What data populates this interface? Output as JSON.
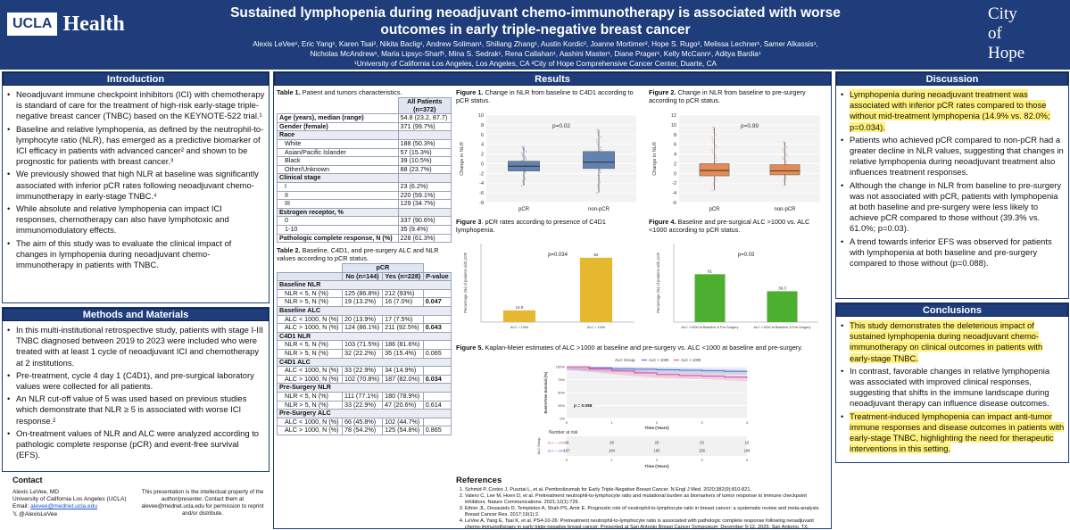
{
  "header": {
    "logo_left_box": "UCLA",
    "logo_left_word": "Health",
    "logo_right": [
      "City",
      "of",
      "Hope"
    ],
    "title_line1": "Sustained lymphopenia during neoadjuvant chemo-immunotherapy is associated with worse",
    "title_line2": "outcomes in early triple-negative breast cancer",
    "authors_line1": "Alexis LeVee¹, Eric Yang¹, Karen Tsai², Nikita Baclig¹, Andrew Soliman¹, Shiliang Zhang¹, Austin Kordic², Joanne Mortimer², Hope S. Rugo², Melissa Lechner¹, Samer Alkassis¹,",
    "authors_line2": "Nicholas McAndrew¹, Marla Lipsyc-Sharf¹, Mina S. Sedrak¹, Rena Callahan¹, Aashini Master¹, Diane Prager¹, Kelly McCann¹, Aditya Bardia¹",
    "affiliations": "¹University of California Los Angeles, Los Angeles, CA ²City of Hope Comprehensive Cancer Center, Duarte, CA"
  },
  "introduction": {
    "heading": "Introduction",
    "bullets": [
      "Neoadjuvant immune checkpoint inhibitors (ICI) with chemotherapy is standard of care for the treatment of high-risk early-stage triple-negative breast cancer (TNBC) based on the KEYNOTE-522 trial.¹",
      "Baseline and relative lymphopenia, as defined by the neutrophil-to-lymphocyte ratio (NLR), has emerged as a predictive biomarker of ICI efficacy in patients with advanced cancer² and shown to be prognostic for patients with breast cancer.³",
      "We previously showed that high NLR at baseline was significantly associated with inferior pCR rates following neoadjuvant chemo-immunotherapy in early-stage TNBC.⁴",
      "While absolute and relative lymphopenia can impact ICI responses, chemotherapy can also have lymphotoxic and immunomodulatory effects.",
      "The aim of this study was to evaluate the clinical impact of changes in lymphopenia during neoadjuvant chemo-immunotherapy in patients with TNBC."
    ]
  },
  "methods": {
    "heading": "Methods and Materials",
    "bullets": [
      "In this multi-institutional retrospective study, patients with stage I-III TNBC diagnosed between 2019 to 2023 were included who were treated with at least 1 cycle of neoadjuvant ICI and chemotherapy at 2 institutions.",
      "Pre-treatment, cycle 4 day 1 (C4D1), and pre-surgical laboratory values were collected for all patients.",
      "An NLR cut-off value of 5 was used based on previous studies which demonstrate that NLR ≥ 5 is associated with worse ICI response.²",
      "On-treatment values of NLR and ALC were analyzed according to pathologic complete response (pCR) and event-free survival (EFS)."
    ]
  },
  "contact": {
    "heading": "Contact",
    "name": "Alexis LeVee, MD",
    "org": "University of California Los Angeles (UCLA)",
    "email_label": "Email:",
    "email": "alevee@mednet.ucla.edu",
    "social": "𝕏  @AlexisLeVee",
    "notice": "This presentation is the intellectual property of the author/presenter. Contact them at alevee@mednet.ucla.edu for permission to reprint and/or distribute."
  },
  "results": {
    "heading": "Results",
    "table1": {
      "caption_bold": "Table 1.",
      "caption": " Patient and tumors characteristics.",
      "col_header": "All Patients",
      "col_sub": "(n=372)",
      "rows": [
        {
          "label": "Age (years), median (range)",
          "value": "54.8 (23.2, 87.7)",
          "bold": true
        },
        {
          "label": "Gender (female)",
          "value": "371 (99.7%)",
          "bold": true
        },
        {
          "label": "Race",
          "value": "",
          "group": true
        },
        {
          "label": "White",
          "value": "188 (50.3%)",
          "indent": true
        },
        {
          "label": "Asian/Pacific Islander",
          "value": "57 (15.3%)",
          "indent": true
        },
        {
          "label": "Black",
          "value": "39 (10.5%)",
          "indent": true
        },
        {
          "label": "Other/Unknown",
          "value": "88 (23.7%)",
          "indent": true
        },
        {
          "label": "Clinical stage",
          "value": "",
          "group": true
        },
        {
          "label": "I",
          "value": "23 (6.2%)",
          "indent": true
        },
        {
          "label": "II",
          "value": "220 (59.1%)",
          "indent": true
        },
        {
          "label": "III",
          "value": "129 (34.7%)",
          "indent": true
        },
        {
          "label": "Estrogen receptor, %",
          "value": "",
          "group": true
        },
        {
          "label": "0",
          "value": "337 (90.6%)",
          "indent": true
        },
        {
          "label": "1-10",
          "value": "35 (9.4%)",
          "indent": true
        },
        {
          "label": "Pathologic complete response, N (%)",
          "value": "228 (61.3%)",
          "bold": true
        }
      ]
    },
    "table2": {
      "caption_bold": "Table 2.",
      "caption": " Baseline, C4D1, and pre-surgery ALC and NLR values according to pCR status.",
      "group_header": "pCR",
      "headers": [
        "",
        "No (n=144)",
        "Yes (n=228)",
        "P-value"
      ],
      "rows": [
        {
          "label": "Baseline NLR",
          "group": true
        },
        {
          "label": "NLR < 5, N (%)",
          "no": "125 (86.8%)",
          "yes": "212 (93%)",
          "p": ""
        },
        {
          "label": "NLR > 5, N (%)",
          "no": "19 (13.2%)",
          "yes": "16 (7.0%)",
          "p": "0.047",
          "pbold": true
        },
        {
          "label": "Baseline ALC",
          "group": true
        },
        {
          "label": "ALC < 1000, N (%)",
          "no": "20 (13.9%)",
          "yes": "17 (7.5%)",
          "p": ""
        },
        {
          "label": "ALC > 1000, N (%)",
          "no": "124 (86.1%)",
          "yes": "211 (92.5%)",
          "p": "0.043",
          "pbold": true
        },
        {
          "label": "C4D1 NLR",
          "group": true
        },
        {
          "label": "NLR < 5, N (%)",
          "no": "103 (71.5%)",
          "yes": "186 (81.6%)",
          "p": ""
        },
        {
          "label": "NLR > 5, N (%)",
          "no": "32 (22.2%)",
          "yes": "35 (15.4%)",
          "p": "0.065"
        },
        {
          "label": "C4D1 ALC",
          "group": true
        },
        {
          "label": "ALC < 1000, N (%)",
          "no": "33 (22.9%)",
          "yes": "34 (14.9%)",
          "p": ""
        },
        {
          "label": "ALC > 1000, N (%)",
          "no": "102 (70.8%)",
          "yes": "187 (82.0%)",
          "p": "0.034",
          "pbold": true
        },
        {
          "label": "Pre-Surgery NLR",
          "group": true
        },
        {
          "label": "NLR < 5, N (%)",
          "no": "111 (77.1%)",
          "yes": "180 (78.9%)",
          "p": ""
        },
        {
          "label": "NLR > 5, N (%)",
          "no": "33 (22.9%)",
          "yes": "47 (20.6%)",
          "p": "0.614"
        },
        {
          "label": "Pre-Surgery ALC",
          "group": true
        },
        {
          "label": "ALC < 1000, N (%)",
          "no": "66 (45.8%)",
          "yes": "102 (44.7%)",
          "p": ""
        },
        {
          "label": "ALC > 1000, N (%)",
          "no": "78 (54.2%)",
          "yes": "125 (54.8%)",
          "p": "0.865"
        }
      ]
    },
    "fig1_caption_bold": "Figure 1.",
    "fig1_caption": " Change in NLR from baseline to C4D1 according to pCR status.",
    "fig2_caption_bold": "Figure 2.",
    "fig2_caption": " Change in NLR from baseline to pre-surgery according to pCR status.",
    "fig3_caption_bold": "Figure 3",
    "fig3_caption": ". pCR rates according to presence of C4D1 lymphopenia.",
    "fig4_caption_bold": "Figure 4.",
    "fig4_caption": " Baseline and pre-surgical ALC >1000 vs. ALC <1000 according to pCR status.",
    "fig5_caption_bold": "Figure 5.",
    "fig5_caption": " Kaplan-Meier estimates of ALC >1000 at baseline and pre-surgery vs. ALC <1000 at baseline and pre-surgery."
  },
  "chart_data": [
    {
      "type": "box",
      "title": "Change in NLR from baseline to C4D1",
      "annotation": "p=0.02",
      "ylabel": "Change in NLR",
      "ylim": [
        -8,
        10
      ],
      "yticks": [
        -8,
        -6,
        -4,
        -2,
        0,
        2,
        4,
        6,
        8,
        10
      ],
      "categories": [
        "pCR",
        "non-pCR"
      ],
      "series": [
        {
          "name": "pCR",
          "q1": -1.5,
          "median": -0.5,
          "q3": 0.5,
          "whisker_low": -4.5,
          "whisker_high": 3.5,
          "color": "#4a6fa5"
        },
        {
          "name": "non-pCR",
          "q1": -1.0,
          "median": 0.3,
          "q3": 2.5,
          "whisker_low": -6.0,
          "whisker_high": 7.0,
          "color": "#4a6fa5"
        }
      ]
    },
    {
      "type": "box",
      "title": "Change in NLR from baseline to pre-surgery",
      "annotation": "p=0.99",
      "ylabel": "Change in NLR",
      "ylim": [
        -6,
        12
      ],
      "yticks": [
        -6,
        -4,
        -2,
        0,
        2,
        4,
        6,
        8,
        10,
        12
      ],
      "categories": [
        "pCR",
        "non-pCR"
      ],
      "series": [
        {
          "name": "pCR",
          "q1": -0.5,
          "median": 0.6,
          "q3": 2.0,
          "whisker_low": -3.5,
          "whisker_high": 9.5,
          "color": "#e07a3a"
        },
        {
          "name": "non-pCR",
          "q1": -0.3,
          "median": 0.5,
          "q3": 1.8,
          "whisker_low": -2.5,
          "whisker_high": 6.5,
          "color": "#e07a3a"
        }
      ]
    },
    {
      "type": "bar",
      "title": "pCR rates according to presence of C4D1 lymphopenia",
      "annotation": "p=0.034",
      "ylabel": "Percentage (%) of patients with pCR",
      "ylim": [
        0,
        100
      ],
      "categories": [
        "ALC < 1000",
        "ALC > 1000"
      ],
      "values": [
        14.9,
        82
      ],
      "value_labels": [
        "14.9",
        "82"
      ],
      "color": "#e6b830"
    },
    {
      "type": "bar",
      "title": "Baseline and pre-surgical ALC >1000 vs. ALC <1000 according to pCR status",
      "annotation": "p=0.03",
      "ylabel": "Percentage (%) of patients with pCR",
      "ylim": [
        0,
        100
      ],
      "categories": [
        "ALC >1000 at Baseline & Pre-Surgery",
        "ALC <1000 at Baseline & Pre-Surgery"
      ],
      "values": [
        61,
        39.3
      ],
      "value_labels": [
        "61",
        "39.3"
      ],
      "color": "#4caf30"
    },
    {
      "type": "line",
      "title": "Kaplan-Meier estimates of EFS",
      "annotation": "p = 0.088",
      "ylabel": "Event-Free Survival (%)",
      "xlabel": "Time (Years)",
      "legend_title": "ALC Group",
      "ylim": [
        0,
        100
      ],
      "xlim": [
        0,
        4
      ],
      "yticks": [
        0,
        25,
        50,
        75,
        100
      ],
      "xticks": [
        0,
        1,
        2,
        3,
        4
      ],
      "series": [
        {
          "name": "ALC > 1000",
          "color": "#4f6fd8",
          "x": [
            0,
            0.5,
            1,
            1.5,
            2,
            2.5,
            3,
            3.5,
            4
          ],
          "y": [
            100,
            98,
            96,
            95,
            94,
            93,
            92,
            91,
            90
          ]
        },
        {
          "name": "ALC < 1000",
          "color": "#e04ea0",
          "x": [
            0,
            0.5,
            1,
            1.5,
            2,
            2.5,
            3,
            3.5,
            4
          ],
          "y": [
            100,
            96,
            92,
            88,
            85,
            83,
            82,
            80,
            78
          ]
        }
      ],
      "risk_table": {
        "title": "Number at risk",
        "ylabel": "ALC Group",
        "xlabel": "Time (Years)",
        "rows": [
          {
            "name": "ALC < 1000",
            "counts": [
              "28",
              "28",
              "25",
              "23",
              "16"
            ]
          },
          {
            "name": "ALC > 1000",
            "counts": [
              "187",
              "184",
              "183",
              "156",
              "106"
            ]
          }
        ]
      }
    }
  ],
  "references": {
    "heading": "References",
    "items": [
      "Schmid P, Cortes J, Pusztai L, et al. Pembrolizumab for Early Triple-Negative Breast Cancer. N Engl J Med. 2020;382(9):810-821.",
      "Valero C, Lee M, Hoen D, et al. Pretreatment neutrophil-to-lymphocyte ratio and mutational burden as biomarkers of tumor response to immune checkpoint inhibitors. Nature Communications. 2021;12(1):729.",
      "Ethier JL, Desautels D, Templeton A, Shah PS, Amir E. Prognostic role of neutrophil-to-lymphocyte ratio in breast cancer: a systematic review and meta-analysis. Breast Cancer Res. 2017;19(1):2.",
      "LeVee A, Yang E, Tsai K, et al. PS4-10-26: Pretreatment neutrophil-to-lymphocyte ratio is associated with pathologic complete response following neoadjuvant chemo-immunotherapy in early triple-negative breast cancer. Presented at San Antonio Breast Cancer Symposium; December 9-12, 2025; San Antonio, TX."
    ]
  },
  "discussion": {
    "heading": "Discussion",
    "bullets": [
      {
        "text": "Lymphopenia during neoadjuvant treatment was associated with inferior pCR rates compared to those without mid-treatment lymphopenia (14.9% vs. 82.0%; p=0.034).",
        "highlight": true
      },
      {
        "text": "Patients who achieved pCR compared to non-pCR had a greater decline in NLR values, suggesting that changes in relative lymphopenia during neoadjuvant treatment also influences treatment responses.",
        "highlight": false
      },
      {
        "text": "Although the change in NLR from baseline to pre-surgery was not associated with pCR, patients with lymphopenia at both baseline and pre-surgery were less likely to achieve pCR compared to those without (39.3% vs. 61.0%; p=0.03).",
        "highlight": false
      },
      {
        "text": "A trend towards inferior EFS was observed for patients with lymphopenia at both baseline and pre-surgery compared to those without (p=0.088).",
        "highlight": false
      }
    ]
  },
  "conclusions": {
    "heading": "Conclusions",
    "bullets": [
      {
        "text": "This study demonstrates the deleterious impact of sustained lymphopenia during neoadjuvant chemo-immunotherapy on clinical outcomes in patients with early-stage TNBC.",
        "highlight": true
      },
      {
        "text": "In contrast, favorable changes in relative lymphopenia was associated with improved clinical responses, suggesting that shifts in the immune landscape during neoadjuvant therapy can influence disease outcomes.",
        "highlight": false
      },
      {
        "text": "Treatment-induced lymphopenia can impact anti-tumor immune responses and disease outcomes in patients with early-stage TNBC, highlighting the need for therapeutic interventions in this setting.",
        "highlight": true
      }
    ]
  }
}
